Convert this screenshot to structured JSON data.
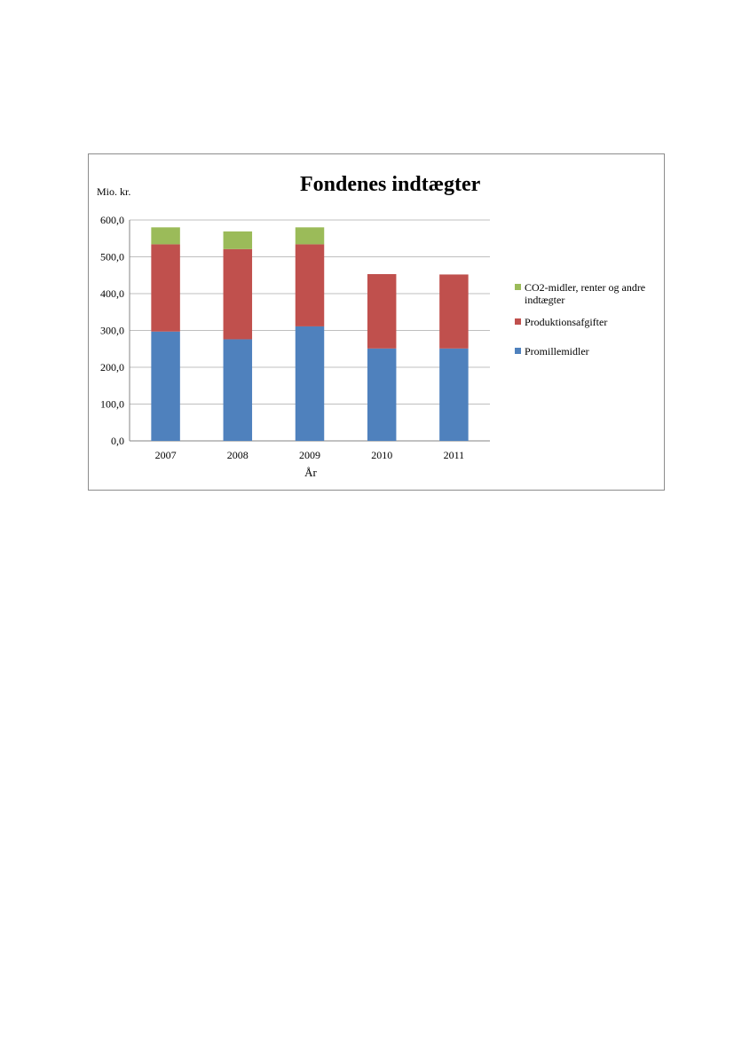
{
  "chart_data": {
    "type": "bar",
    "stacked": true,
    "title": "Fondenes indtægter",
    "ylabel": "Mio. kr.",
    "xlabel": "År",
    "categories": [
      "2007",
      "2008",
      "2009",
      "2010",
      "2011"
    ],
    "ylim": [
      0,
      600
    ],
    "yticks": [
      "0,0",
      "100,0",
      "200,0",
      "300,0",
      "400,0",
      "500,0",
      "600,0"
    ],
    "grid": true,
    "legend_position": "right",
    "series": [
      {
        "name": "Promillemidler",
        "color": "#4f81bd",
        "values": [
          297,
          276,
          311,
          251,
          251
        ]
      },
      {
        "name": "Produktionsafgifter",
        "color": "#c0504d",
        "values": [
          237,
          245,
          223,
          202,
          201
        ]
      },
      {
        "name": "CO2-midler, renter og andre indtægter",
        "color": "#9bbb59",
        "values": [
          46,
          48,
          46,
          0,
          0
        ]
      }
    ],
    "legend_order": [
      2,
      1,
      0
    ]
  }
}
